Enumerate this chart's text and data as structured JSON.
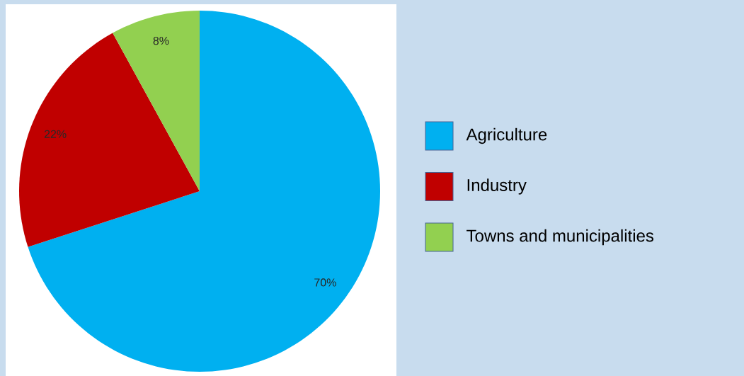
{
  "chart_data": {
    "type": "pie",
    "categories": [
      "Agriculture",
      "Industry",
      "Towns and municipalities"
    ],
    "values": [
      70,
      22,
      8
    ],
    "colors": [
      "#00b0f0",
      "#c00000",
      "#92d050"
    ],
    "value_labels": [
      "70%",
      "22%",
      "8%"
    ],
    "legend": "right"
  }
}
